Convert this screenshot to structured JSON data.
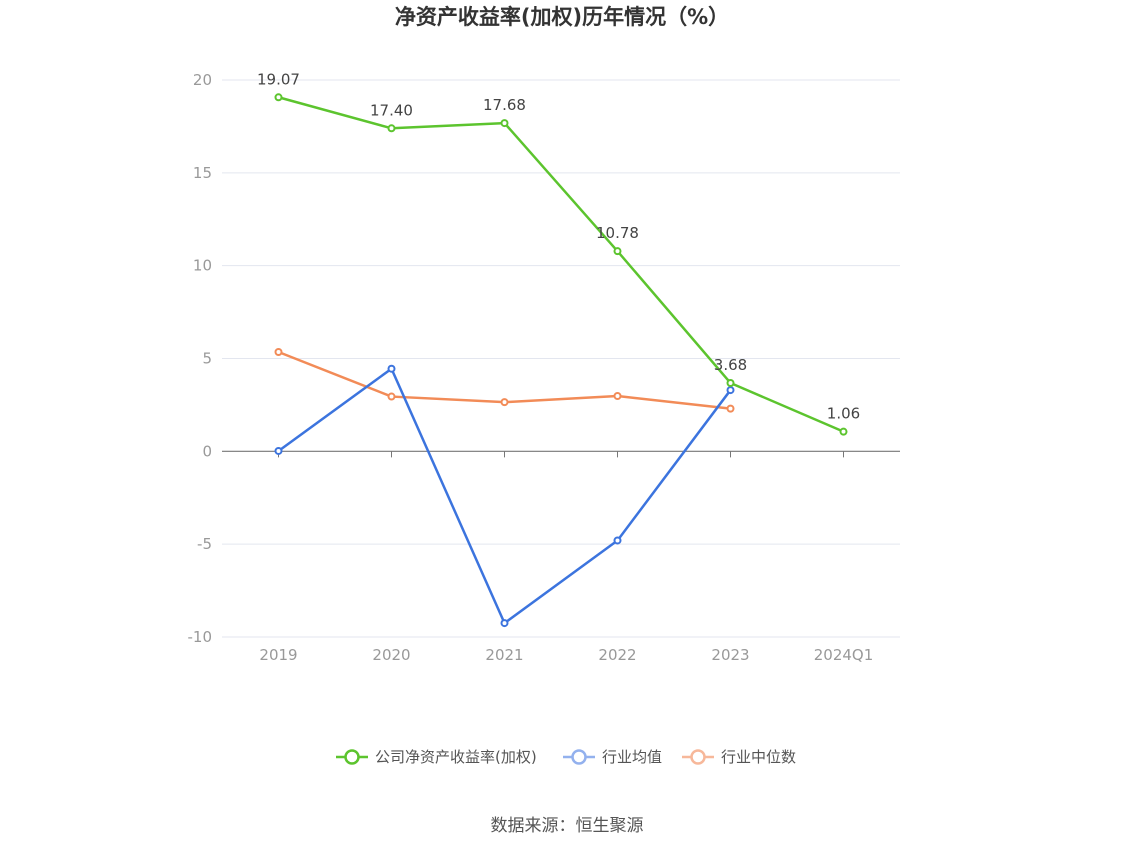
{
  "chart_data": {
    "type": "line",
    "title": "净资产收益率(加权)历年情况（%）",
    "categories": [
      "2019",
      "2020",
      "2021",
      "2022",
      "2023",
      "2024Q1"
    ],
    "ylim": [
      -10,
      20
    ],
    "yticks": [
      20,
      15,
      10,
      5,
      0,
      -5,
      -10
    ],
    "grid": true,
    "legend_position": "bottom-center",
    "series": [
      {
        "name": "公司净资产收益率(加权)",
        "color": "#5cc42e",
        "values": [
          19.07,
          17.4,
          17.68,
          10.78,
          3.68,
          1.06
        ],
        "labels": [
          "19.07",
          "17.40",
          "17.68",
          "10.78",
          "3.68",
          "1.06"
        ]
      },
      {
        "name": "行业均值",
        "color": "#3c74de",
        "values": [
          0.02,
          4.45,
          -9.25,
          -4.8,
          3.3,
          null
        ]
      },
      {
        "name": "行业中位数",
        "color": "#f28b57",
        "values": [
          5.35,
          2.95,
          2.65,
          2.98,
          2.3,
          null
        ]
      }
    ]
  },
  "source": "数据来源：恒生聚源"
}
